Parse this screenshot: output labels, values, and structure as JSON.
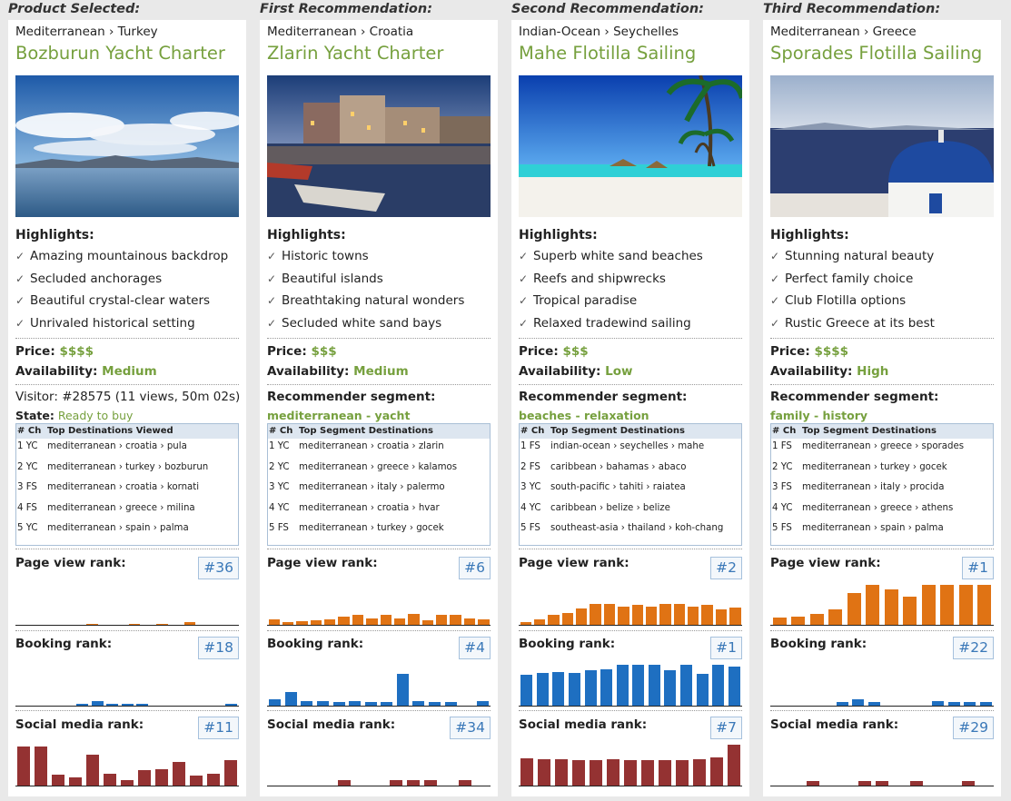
{
  "highlights_label": "Highlights:",
  "price_label": "Price:",
  "availability_label": "Availability:",
  "segment_label": "Recommender segment:",
  "page_view_label": "Page view rank:",
  "booking_label": "Booking rank:",
  "social_label": "Social media rank:",
  "dest_num_header": "# Ch",
  "colors": {
    "accent_green": "#76a03e",
    "page_view_bar": "#e07314",
    "booking_bar": "#1e6fc1",
    "social_bar": "#943232",
    "badge_text": "#3a78b8"
  },
  "columns": [
    {
      "header": "Product Selected:",
      "breadcrumb": "Mediterranean › Turkey",
      "title": "Bozburun Yacht Charter",
      "photo_icon": "sea-mountains-photo",
      "highlights": [
        "Amazing mountainous backdrop",
        "Secluded anchorages",
        "Beautiful crystal-clear waters",
        "Unrivaled historical setting"
      ],
      "price": "$$$$",
      "availability": "Medium",
      "visitor_label": "Visitor:",
      "visitor_value": "#28575 (11 views, 50m 02s)",
      "state_label": "State:",
      "state_value": "Ready to buy",
      "dest_header": "Top Destinations Viewed",
      "destinations": [
        {
          "num": "1",
          "ch": "YC",
          "path": "mediterranean › croatia › pula"
        },
        {
          "num": "2",
          "ch": "YC",
          "path": "mediterranean › turkey › bozburun"
        },
        {
          "num": "3",
          "ch": "FS",
          "path": "mediterranean › croatia › kornati"
        },
        {
          "num": "4",
          "ch": "FS",
          "path": "mediterranean › greece › milina"
        },
        {
          "num": "5",
          "ch": "YC",
          "path": "mediterranean › spain › palma"
        }
      ],
      "page_view_rank": "#36",
      "booking_rank": "#18",
      "social_rank": "#11",
      "page_view_bars": [
        0,
        0,
        0,
        0,
        0.02,
        0.04,
        0.02,
        0,
        0.04,
        0.03,
        0.04,
        0.02,
        0.08,
        0.02,
        0.03,
        0
      ],
      "booking_bars": [
        0,
        0,
        0,
        0,
        0.07,
        0.12,
        0.07,
        0.07,
        0.07,
        0,
        0,
        0,
        0,
        0,
        0.07
      ],
      "social_bars": [
        0.95,
        0.95,
        0.28,
        0.22,
        0.75,
        0.3,
        0.15,
        0.4,
        0.42,
        0.58,
        0.25,
        0.3,
        0.62
      ]
    },
    {
      "header": "First Recommendation:",
      "breadcrumb": "Mediterranean › Croatia",
      "title": "Zlarin Yacht Charter",
      "photo_icon": "harbor-boat-photo",
      "highlights": [
        "Historic towns",
        "Beautiful islands",
        "Breathtaking natural wonders",
        "Secluded white sand bays"
      ],
      "price": "$$$",
      "availability": "Medium",
      "segment_value": "mediterranean - yacht",
      "dest_header": "Top Segment Destinations",
      "destinations": [
        {
          "num": "1",
          "ch": "YC",
          "path": "mediterranean › croatia › zlarin"
        },
        {
          "num": "2",
          "ch": "YC",
          "path": "mediterranean › greece › kalamos"
        },
        {
          "num": "3",
          "ch": "YC",
          "path": "mediterranean › italy › palermo"
        },
        {
          "num": "4",
          "ch": "YC",
          "path": "mediterranean › croatia › hvar"
        },
        {
          "num": "5",
          "ch": "FS",
          "path": "mediterranean › turkey › gocek"
        }
      ],
      "page_view_rank": "#6",
      "booking_rank": "#4",
      "social_rank": "#34",
      "page_view_bars": [
        0.15,
        0.08,
        0.1,
        0.12,
        0.15,
        0.22,
        0.25,
        0.18,
        0.25,
        0.18,
        0.28,
        0.12,
        0.25,
        0.25,
        0.18,
        0.15
      ],
      "booking_bars": [
        0.17,
        0.33,
        0.13,
        0.13,
        0.1,
        0.13,
        0.1,
        0.1,
        0.75,
        0.13,
        0.1,
        0.1,
        0,
        0.13
      ],
      "social_bars": [
        0,
        0,
        0,
        0,
        0.16,
        0,
        0,
        0.16,
        0.16,
        0.16,
        0,
        0.16,
        0
      ]
    },
    {
      "header": "Second Recommendation:",
      "breadcrumb": "Indian-Ocean › Seychelles",
      "title": "Mahe Flotilla Sailing",
      "photo_icon": "tropical-beach-photo",
      "highlights": [
        "Superb white sand beaches",
        "Reefs and shipwrecks",
        "Tropical paradise",
        "Relaxed tradewind sailing"
      ],
      "price": "$$$",
      "availability": "Low",
      "segment_value": "beaches - relaxation",
      "dest_header": "Top Segment Destinations",
      "destinations": [
        {
          "num": "1",
          "ch": "FS",
          "path": "indian-ocean › seychelles › mahe"
        },
        {
          "num": "2",
          "ch": "FS",
          "path": "caribbean › bahamas › abaco"
        },
        {
          "num": "3",
          "ch": "YC",
          "path": "south-pacific › tahiti › raiatea"
        },
        {
          "num": "4",
          "ch": "YC",
          "path": "caribbean › belize › belize"
        },
        {
          "num": "5",
          "ch": "FS",
          "path": "southeast-asia › thailand › koh-chang"
        }
      ],
      "page_view_rank": "#2",
      "booking_rank": "#1",
      "social_rank": "#7",
      "page_view_bars": [
        0.08,
        0.15,
        0.25,
        0.3,
        0.4,
        0.5,
        0.5,
        0.45,
        0.48,
        0.45,
        0.5,
        0.5,
        0.45,
        0.48,
        0.38,
        0.43
      ],
      "booking_bars": [
        0.72,
        0.78,
        0.8,
        0.77,
        0.83,
        0.85,
        0.95,
        0.95,
        0.95,
        0.83,
        0.95,
        0.75,
        0.95,
        0.92
      ],
      "social_bars": [
        0.68,
        0.65,
        0.65,
        0.62,
        0.62,
        0.65,
        0.62,
        0.62,
        0.62,
        0.62,
        0.65,
        0.7,
        1.0
      ]
    },
    {
      "header": "Third Recommendation:",
      "breadcrumb": "Mediterranean › Greece",
      "title": "Sporades Flotilla Sailing",
      "photo_icon": "blue-dome-church-photo",
      "highlights": [
        "Stunning natural beauty",
        "Perfect family choice",
        "Club Flotilla options",
        "Rustic Greece at its best"
      ],
      "price": "$$$$",
      "availability": "High",
      "segment_value": "family - history",
      "dest_header": "Top Segment Destinations",
      "destinations": [
        {
          "num": "1",
          "ch": "FS",
          "path": "mediterranean › greece › sporades"
        },
        {
          "num": "2",
          "ch": "YC",
          "path": "mediterranean › turkey › gocek"
        },
        {
          "num": "3",
          "ch": "FS",
          "path": "mediterranean › italy › procida"
        },
        {
          "num": "4",
          "ch": "YC",
          "path": "mediterranean › greece › athens"
        },
        {
          "num": "5",
          "ch": "FS",
          "path": "mediterranean › spain › palma"
        }
      ],
      "page_view_rank": "#1",
      "booking_rank": "#22",
      "social_rank": "#29",
      "page_view_bars": [
        0.2,
        0.22,
        0.28,
        0.38,
        0.77,
        0.95,
        0.85,
        0.68,
        0.95,
        0.95,
        0.95,
        0.95
      ],
      "booking_bars": [
        0,
        0,
        0,
        0,
        0.1,
        0.17,
        0.1,
        0,
        0,
        0,
        0.13,
        0.1,
        0.1,
        0.1
      ],
      "social_bars": [
        0,
        0,
        0.13,
        0,
        0,
        0.13,
        0.13,
        0,
        0.13,
        0,
        0,
        0.13,
        0
      ]
    }
  ]
}
